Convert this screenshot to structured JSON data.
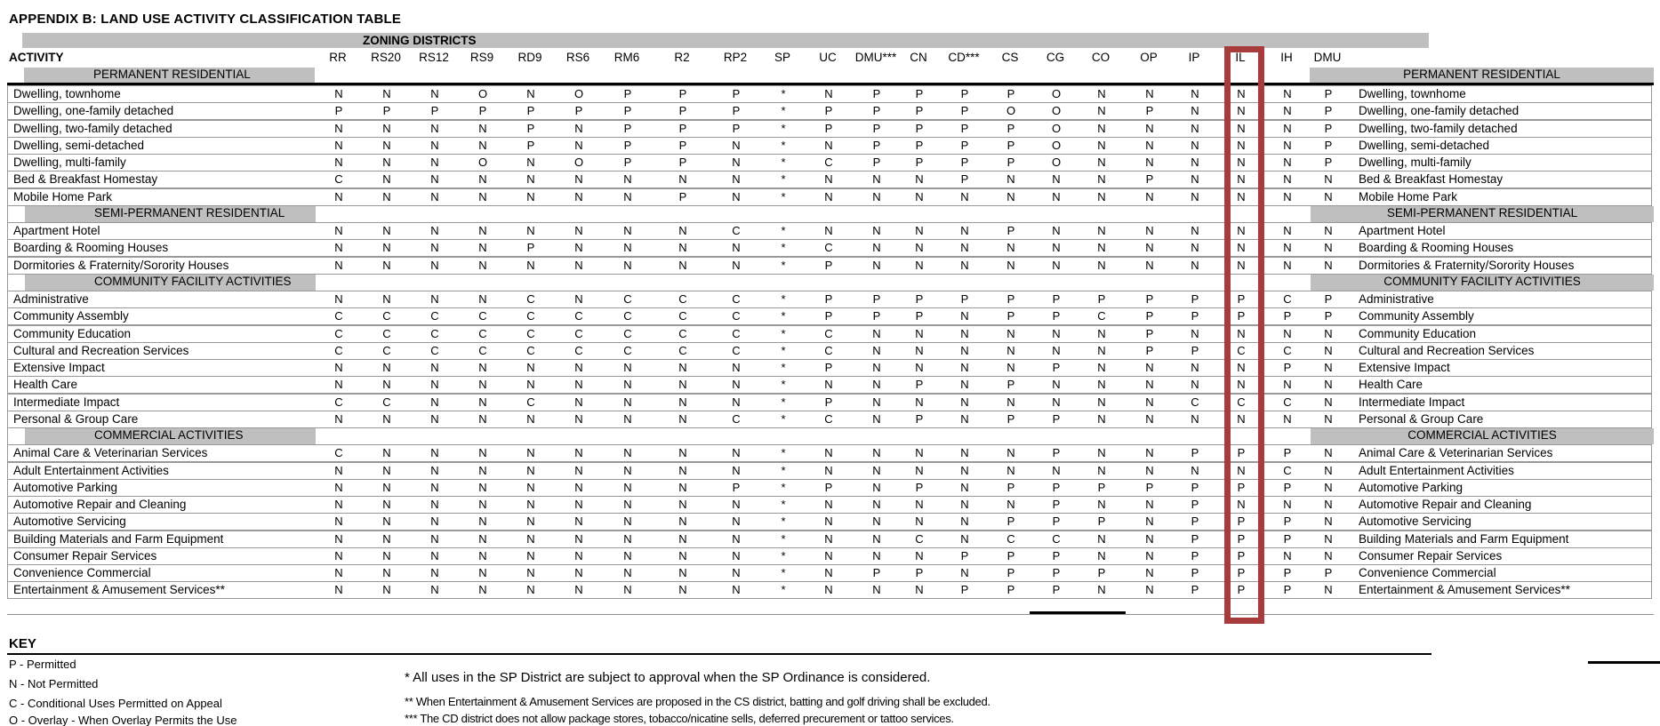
{
  "title": "APPENDIX B: LAND USE ACTIVITY CLASSIFICATION TABLE",
  "table": {
    "group_header": "ZONING DISTRICTS",
    "activity_header": "ACTIVITY",
    "columns": [
      "RR",
      "RS20",
      "RS12",
      "RS9",
      "RD9",
      "RS6",
      "RM6",
      "R2",
      "RP2",
      "SP",
      "UC",
      "DMU***",
      "CN",
      "CD***",
      "CS",
      "CG",
      "CO",
      "OP",
      "IP",
      "IL",
      "IH",
      "DMU"
    ],
    "highlight": {
      "column": "IL",
      "color": "#a83b3b"
    },
    "sections": [
      {
        "name": "PERMANENT RESIDENTIAL",
        "rows": [
          {
            "activity": "Dwelling, townhome",
            "values": [
              "N",
              "N",
              "N",
              "O",
              "N",
              "O",
              "P",
              "P",
              "P",
              "*",
              "N",
              "P",
              "P",
              "P",
              "P",
              "O",
              "N",
              "N",
              "N",
              "N",
              "N",
              "P"
            ]
          },
          {
            "activity": "Dwelling, one-family detached",
            "values": [
              "P",
              "P",
              "P",
              "P",
              "P",
              "P",
              "P",
              "P",
              "P",
              "*",
              "P",
              "P",
              "P",
              "P",
              "O",
              "O",
              "N",
              "P",
              "N",
              "N",
              "N",
              "P"
            ]
          },
          {
            "activity": "Dwelling, two-family detached",
            "values": [
              "N",
              "N",
              "N",
              "N",
              "P",
              "N",
              "P",
              "P",
              "P",
              "*",
              "P",
              "P",
              "P",
              "P",
              "P",
              "O",
              "N",
              "N",
              "N",
              "N",
              "N",
              "P"
            ]
          },
          {
            "activity": "Dwelling, semi-detached",
            "values": [
              "N",
              "N",
              "N",
              "N",
              "P",
              "N",
              "P",
              "P",
              "N",
              "*",
              "N",
              "P",
              "P",
              "P",
              "P",
              "O",
              "N",
              "N",
              "N",
              "N",
              "N",
              "P"
            ]
          },
          {
            "activity": "Dwelling, multi-family",
            "values": [
              "N",
              "N",
              "N",
              "O",
              "N",
              "O",
              "P",
              "P",
              "N",
              "*",
              "C",
              "P",
              "P",
              "P",
              "P",
              "O",
              "N",
              "N",
              "N",
              "N",
              "N",
              "P"
            ]
          },
          {
            "activity": "Bed & Breakfast Homestay",
            "values": [
              "C",
              "N",
              "N",
              "N",
              "N",
              "N",
              "N",
              "N",
              "N",
              "*",
              "N",
              "N",
              "N",
              "P",
              "N",
              "N",
              "N",
              "P",
              "N",
              "N",
              "N",
              "N"
            ]
          },
          {
            "activity": "Mobile Home Park",
            "values": [
              "N",
              "N",
              "N",
              "N",
              "N",
              "N",
              "N",
              "P",
              "N",
              "*",
              "N",
              "N",
              "N",
              "N",
              "N",
              "N",
              "N",
              "N",
              "N",
              "N",
              "N",
              "N"
            ]
          }
        ]
      },
      {
        "name": "SEMI-PERMANENT RESIDENTIAL",
        "rows": [
          {
            "activity": "Apartment Hotel",
            "values": [
              "N",
              "N",
              "N",
              "N",
              "N",
              "N",
              "N",
              "N",
              "C",
              "*",
              "N",
              "N",
              "N",
              "N",
              "P",
              "N",
              "N",
              "N",
              "N",
              "N",
              "N",
              "N"
            ]
          },
          {
            "activity": "Boarding & Rooming Houses",
            "values": [
              "N",
              "N",
              "N",
              "N",
              "P",
              "N",
              "N",
              "N",
              "N",
              "*",
              "C",
              "N",
              "N",
              "N",
              "N",
              "N",
              "N",
              "N",
              "N",
              "N",
              "N",
              "N"
            ]
          },
          {
            "activity": "Dormitories & Fraternity/Sorority Houses",
            "values": [
              "N",
              "N",
              "N",
              "N",
              "N",
              "N",
              "N",
              "N",
              "N",
              "*",
              "P",
              "N",
              "N",
              "N",
              "N",
              "N",
              "N",
              "N",
              "N",
              "N",
              "N",
              "N"
            ]
          }
        ]
      },
      {
        "name": "COMMUNITY FACILITY ACTIVITIES",
        "rows": [
          {
            "activity": "Administrative",
            "values": [
              "N",
              "N",
              "N",
              "N",
              "C",
              "N",
              "C",
              "C",
              "C",
              "*",
              "P",
              "P",
              "P",
              "P",
              "P",
              "P",
              "P",
              "P",
              "P",
              "P",
              "C",
              "P"
            ]
          },
          {
            "activity": "Community Assembly",
            "values": [
              "C",
              "C",
              "C",
              "C",
              "C",
              "C",
              "C",
              "C",
              "C",
              "*",
              "P",
              "P",
              "P",
              "N",
              "P",
              "P",
              "C",
              "P",
              "P",
              "P",
              "P",
              "P"
            ]
          },
          {
            "activity": "Community Education",
            "values": [
              "C",
              "C",
              "C",
              "C",
              "C",
              "C",
              "C",
              "C",
              "C",
              "*",
              "C",
              "N",
              "N",
              "N",
              "N",
              "N",
              "N",
              "P",
              "N",
              "N",
              "N",
              "N"
            ]
          },
          {
            "activity": "Cultural and Recreation Services",
            "values": [
              "C",
              "C",
              "C",
              "C",
              "C",
              "C",
              "C",
              "C",
              "C",
              "*",
              "C",
              "N",
              "N",
              "N",
              "N",
              "N",
              "N",
              "P",
              "P",
              "C",
              "C",
              "N"
            ]
          },
          {
            "activity": "Extensive Impact",
            "values": [
              "N",
              "N",
              "N",
              "N",
              "N",
              "N",
              "N",
              "N",
              "N",
              "*",
              "P",
              "N",
              "N",
              "N",
              "N",
              "P",
              "N",
              "N",
              "N",
              "N",
              "P",
              "N"
            ]
          },
          {
            "activity": "Health Care",
            "values": [
              "N",
              "N",
              "N",
              "N",
              "N",
              "N",
              "N",
              "N",
              "N",
              "*",
              "N",
              "N",
              "P",
              "N",
              "P",
              "N",
              "N",
              "N",
              "N",
              "N",
              "N",
              "N"
            ]
          },
          {
            "activity": "Intermediate Impact",
            "values": [
              "C",
              "C",
              "N",
              "N",
              "C",
              "N",
              "N",
              "N",
              "N",
              "*",
              "P",
              "N",
              "N",
              "N",
              "N",
              "N",
              "N",
              "N",
              "C",
              "C",
              "C",
              "N"
            ]
          },
          {
            "activity": "Personal & Group Care",
            "values": [
              "N",
              "N",
              "N",
              "N",
              "N",
              "N",
              "N",
              "N",
              "C",
              "*",
              "C",
              "N",
              "P",
              "N",
              "P",
              "P",
              "N",
              "N",
              "N",
              "N",
              "N",
              "N"
            ]
          }
        ]
      },
      {
        "name": "COMMERCIAL ACTIVITIES",
        "rows": [
          {
            "activity": "Animal Care & Veterinarian Services",
            "values": [
              "C",
              "N",
              "N",
              "N",
              "N",
              "N",
              "N",
              "N",
              "N",
              "*",
              "N",
              "N",
              "N",
              "N",
              "N",
              "P",
              "N",
              "N",
              "P",
              "P",
              "P",
              "N"
            ]
          },
          {
            "activity": "Adult Entertainment Activities",
            "values": [
              "N",
              "N",
              "N",
              "N",
              "N",
              "N",
              "N",
              "N",
              "N",
              "*",
              "N",
              "N",
              "N",
              "N",
              "N",
              "N",
              "N",
              "N",
              "N",
              "N",
              "C",
              "N"
            ]
          },
          {
            "activity": "Automotive Parking",
            "values": [
              "N",
              "N",
              "N",
              "N",
              "N",
              "N",
              "N",
              "N",
              "P",
              "*",
              "P",
              "N",
              "P",
              "N",
              "P",
              "P",
              "P",
              "P",
              "P",
              "P",
              "P",
              "N"
            ]
          },
          {
            "activity": "Automotive Repair and Cleaning",
            "values": [
              "N",
              "N",
              "N",
              "N",
              "N",
              "N",
              "N",
              "N",
              "N",
              "*",
              "N",
              "N",
              "N",
              "N",
              "N",
              "P",
              "N",
              "N",
              "P",
              "N",
              "N",
              "N"
            ]
          },
          {
            "activity": "Automotive Servicing",
            "values": [
              "N",
              "N",
              "N",
              "N",
              "N",
              "N",
              "N",
              "N",
              "N",
              "*",
              "N",
              "N",
              "N",
              "N",
              "P",
              "P",
              "P",
              "N",
              "P",
              "P",
              "P",
              "N"
            ]
          },
          {
            "activity": "Building Materials and Farm Equipment",
            "values": [
              "N",
              "N",
              "N",
              "N",
              "N",
              "N",
              "N",
              "N",
              "N",
              "*",
              "N",
              "N",
              "C",
              "N",
              "C",
              "C",
              "N",
              "N",
              "P",
              "P",
              "P",
              "N"
            ]
          },
          {
            "activity": "Consumer Repair Services",
            "values": [
              "N",
              "N",
              "N",
              "N",
              "N",
              "N",
              "N",
              "N",
              "N",
              "*",
              "N",
              "N",
              "N",
              "P",
              "P",
              "P",
              "N",
              "N",
              "P",
              "P",
              "N",
              "N"
            ]
          },
          {
            "activity": "Convenience Commercial",
            "values": [
              "N",
              "N",
              "N",
              "N",
              "N",
              "N",
              "N",
              "N",
              "N",
              "*",
              "N",
              "P",
              "P",
              "N",
              "P",
              "P",
              "P",
              "N",
              "P",
              "P",
              "P",
              "P"
            ]
          },
          {
            "activity": "Entertainment & Amusement Services**",
            "values": [
              "N",
              "N",
              "N",
              "N",
              "N",
              "N",
              "N",
              "N",
              "N",
              "*",
              "N",
              "N",
              "N",
              "P",
              "P",
              "P",
              "N",
              "N",
              "P",
              "P",
              "P",
              "N"
            ]
          }
        ]
      }
    ]
  },
  "key": {
    "heading": "KEY",
    "items": [
      "P - Permitted",
      "N - Not Permitted",
      "C - Conditional Uses Permitted on Appeal",
      "O - Overlay - When Overlay Permits the Use"
    ]
  },
  "footnotes": [
    "* All uses in the SP District are subject to approval when the SP Ordinance is considered.",
    "** When Entertainment & Amusement Services are proposed in the CS district, batting and golf driving shall be excluded.",
    "*** The CD district does not allow package stores, tobacco/nicatine sells, deferred precurement or tattoo services."
  ]
}
